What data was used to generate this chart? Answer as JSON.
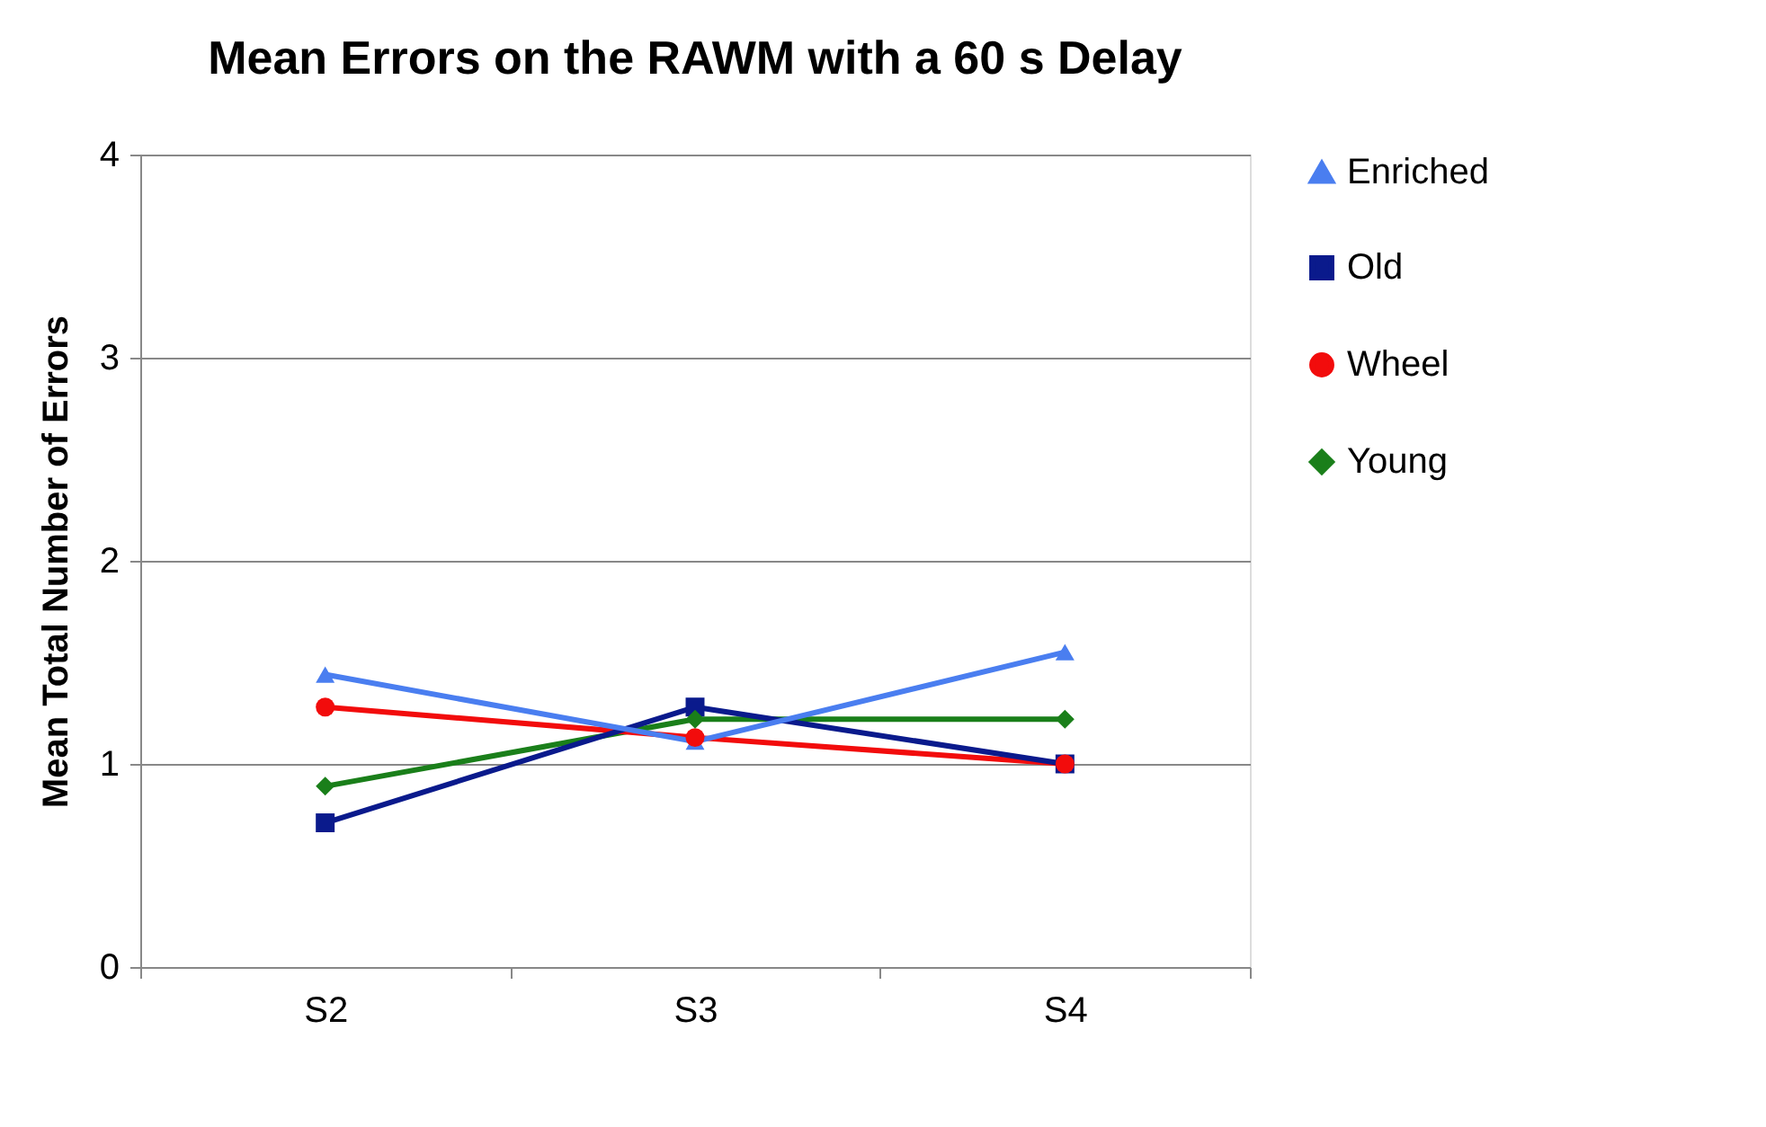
{
  "chart_data": {
    "type": "line",
    "title": "Mean Errors on the RAWM with a 60 s Delay",
    "ylabel": "Mean Total Number of Errors",
    "categories": [
      "S2",
      "S3",
      "S4"
    ],
    "series": [
      {
        "name": "Enriched",
        "color": "#4a7ef0",
        "marker": "triangle",
        "values": [
          1.44,
          1.11,
          1.55
        ]
      },
      {
        "name": "Old",
        "color": "#0a1a8c",
        "marker": "square",
        "values": [
          0.71,
          1.28,
          1.0
        ]
      },
      {
        "name": "Wheel",
        "color": "#f20c0c",
        "marker": "circle",
        "values": [
          1.28,
          1.13,
          1.0
        ]
      },
      {
        "name": "Young",
        "color": "#1a7f1a",
        "marker": "diamond",
        "values": [
          0.89,
          1.22,
          1.22
        ]
      }
    ],
    "ylim": [
      0,
      4
    ],
    "yticks": [
      0,
      1,
      2,
      3,
      4
    ],
    "grid": "y",
    "legend": "right",
    "line_style": "solid"
  }
}
